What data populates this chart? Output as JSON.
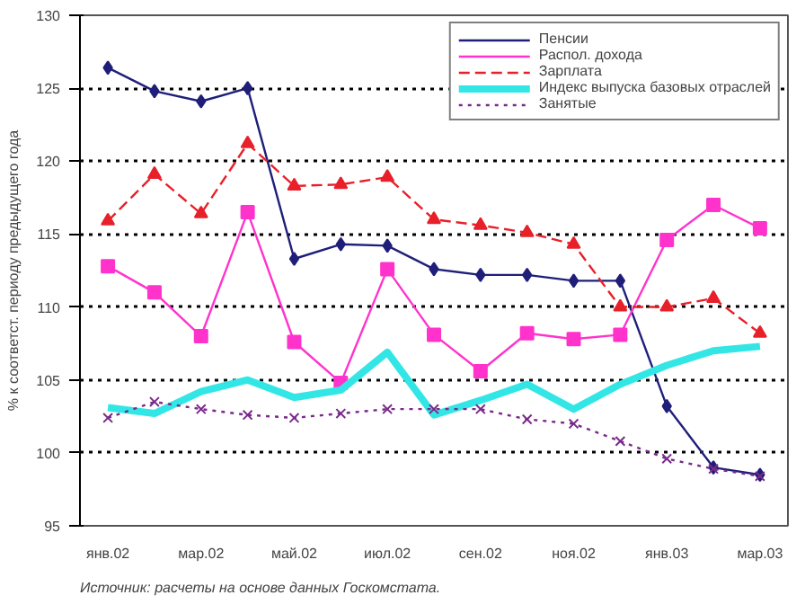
{
  "chart_data": {
    "type": "line",
    "ylabel": "% к соответст. периоду предыдущего года",
    "categories": [
      "янв.02",
      null,
      "мар.02",
      null,
      "май.02",
      null,
      "июл.02",
      null,
      "сен.02",
      null,
      "ноя.02",
      null,
      "янв.03",
      null,
      "мар.03"
    ],
    "series": [
      {
        "name": "Пенсии",
        "color": "#1f1f7a",
        "marker": "diamond",
        "line_style": "solid",
        "values": [
          126.4,
          124.8,
          124.1,
          125.0,
          113.3,
          114.3,
          114.2,
          112.6,
          112.2,
          112.2,
          111.8,
          111.8,
          103.2,
          99.0,
          98.5
        ]
      },
      {
        "name": "Распол. дохода",
        "color": "#ff33cc",
        "marker": "square",
        "line_style": "solid",
        "values": [
          112.8,
          111.0,
          108.0,
          116.5,
          107.6,
          104.8,
          112.6,
          108.1,
          105.6,
          108.2,
          107.8,
          108.1,
          114.6,
          117.0,
          115.4
        ]
      },
      {
        "name": "Зарплата",
        "color": "#e8202a",
        "marker": "triangle",
        "line_style": "dashed",
        "values": [
          115.9,
          119.1,
          116.4,
          121.2,
          118.3,
          118.4,
          118.9,
          116.0,
          115.6,
          115.1,
          114.3,
          110.0,
          110.0,
          110.6,
          108.2
        ]
      },
      {
        "name": "Индекс выпуска базовых отраслей",
        "color": "#33e6e6",
        "marker": "none",
        "line_style": "solid",
        "values": [
          103.1,
          102.7,
          104.2,
          105.0,
          103.8,
          104.3,
          106.9,
          102.6,
          103.6,
          104.7,
          103.0,
          104.7,
          106.0,
          107.0,
          107.3
        ]
      },
      {
        "name": "Занятые",
        "color": "#7a2a8a",
        "marker": "cross",
        "line_style": "dotted",
        "values": [
          102.4,
          103.5,
          103.0,
          102.6,
          102.4,
          102.7,
          103.0,
          103.0,
          103.0,
          102.3,
          102.0,
          100.8,
          99.6,
          98.9,
          98.4
        ]
      }
    ],
    "ylim": [
      95,
      130
    ],
    "yticks": [
      95,
      100,
      105,
      110,
      115,
      120,
      125,
      130
    ],
    "grid": "y",
    "legend": "top right",
    "annotations": [
      "Источник: расчеты на основе данных Госкомстата."
    ]
  }
}
